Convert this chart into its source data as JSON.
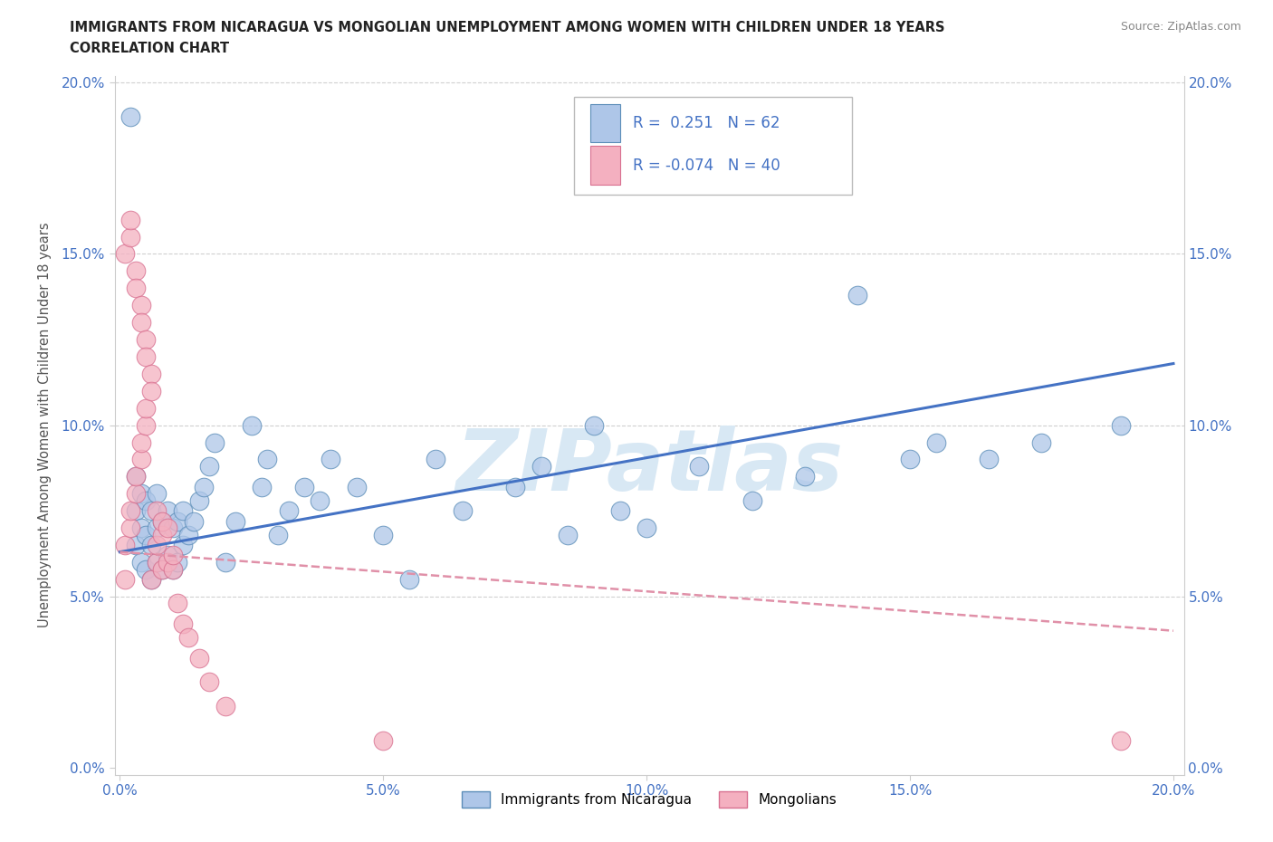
{
  "title_line1": "IMMIGRANTS FROM NICARAGUA VS MONGOLIAN UNEMPLOYMENT AMONG WOMEN WITH CHILDREN UNDER 18 YEARS",
  "title_line2": "CORRELATION CHART",
  "source": "Source: ZipAtlas.com",
  "ylabel": "Unemployment Among Women with Children Under 18 years",
  "xlim": [
    0.0,
    0.2
  ],
  "ylim": [
    0.0,
    0.2
  ],
  "color_blue_fill": "#aec6e8",
  "color_blue_edge": "#5b8db8",
  "color_pink_fill": "#f4b0c0",
  "color_pink_edge": "#d87090",
  "trendline_blue": "#4472c4",
  "trendline_pink": "#e090a8",
  "blue_x": [
    0.002,
    0.003,
    0.003,
    0.003,
    0.004,
    0.004,
    0.004,
    0.005,
    0.005,
    0.005,
    0.006,
    0.006,
    0.006,
    0.007,
    0.007,
    0.007,
    0.008,
    0.008,
    0.009,
    0.009,
    0.01,
    0.01,
    0.011,
    0.011,
    0.012,
    0.012,
    0.013,
    0.014,
    0.015,
    0.016,
    0.017,
    0.018,
    0.02,
    0.022,
    0.025,
    0.027,
    0.028,
    0.03,
    0.032,
    0.035,
    0.038,
    0.04,
    0.045,
    0.05,
    0.055,
    0.06,
    0.065,
    0.075,
    0.08,
    0.085,
    0.09,
    0.095,
    0.1,
    0.11,
    0.12,
    0.13,
    0.14,
    0.15,
    0.155,
    0.165,
    0.175,
    0.19
  ],
  "blue_y": [
    0.19,
    0.065,
    0.075,
    0.085,
    0.06,
    0.07,
    0.08,
    0.058,
    0.068,
    0.078,
    0.055,
    0.065,
    0.075,
    0.06,
    0.07,
    0.08,
    0.058,
    0.072,
    0.062,
    0.075,
    0.058,
    0.07,
    0.06,
    0.072,
    0.065,
    0.075,
    0.068,
    0.072,
    0.078,
    0.082,
    0.088,
    0.095,
    0.06,
    0.072,
    0.1,
    0.082,
    0.09,
    0.068,
    0.075,
    0.082,
    0.078,
    0.09,
    0.082,
    0.068,
    0.055,
    0.09,
    0.075,
    0.082,
    0.088,
    0.068,
    0.1,
    0.075,
    0.07,
    0.088,
    0.078,
    0.085,
    0.138,
    0.09,
    0.095,
    0.09,
    0.095,
    0.1
  ],
  "pink_x": [
    0.001,
    0.001,
    0.001,
    0.002,
    0.002,
    0.002,
    0.002,
    0.003,
    0.003,
    0.003,
    0.003,
    0.004,
    0.004,
    0.004,
    0.004,
    0.005,
    0.005,
    0.005,
    0.005,
    0.006,
    0.006,
    0.006,
    0.007,
    0.007,
    0.007,
    0.008,
    0.008,
    0.008,
    0.009,
    0.009,
    0.01,
    0.01,
    0.011,
    0.012,
    0.013,
    0.015,
    0.017,
    0.02,
    0.05,
    0.19
  ],
  "pink_y": [
    0.055,
    0.065,
    0.15,
    0.155,
    0.16,
    0.07,
    0.075,
    0.145,
    0.14,
    0.08,
    0.085,
    0.135,
    0.13,
    0.09,
    0.095,
    0.125,
    0.12,
    0.1,
    0.105,
    0.115,
    0.055,
    0.11,
    0.06,
    0.065,
    0.075,
    0.058,
    0.068,
    0.072,
    0.06,
    0.07,
    0.058,
    0.062,
    0.048,
    0.042,
    0.038,
    0.032,
    0.025,
    0.018,
    0.008,
    0.008
  ],
  "trend_blue_x0": 0.0,
  "trend_blue_y0": 0.063,
  "trend_blue_x1": 0.2,
  "trend_blue_y1": 0.118,
  "trend_pink_x0": 0.0,
  "trend_pink_y0": 0.063,
  "trend_pink_x1": 0.2,
  "trend_pink_y1": 0.04,
  "watermark_text": "ZIPatlas",
  "watermark_color": "#d8e8f4",
  "grid_color": "#d0d0d0",
  "tick_color": "#4472c4",
  "title_color": "#222222",
  "source_color": "#888888"
}
